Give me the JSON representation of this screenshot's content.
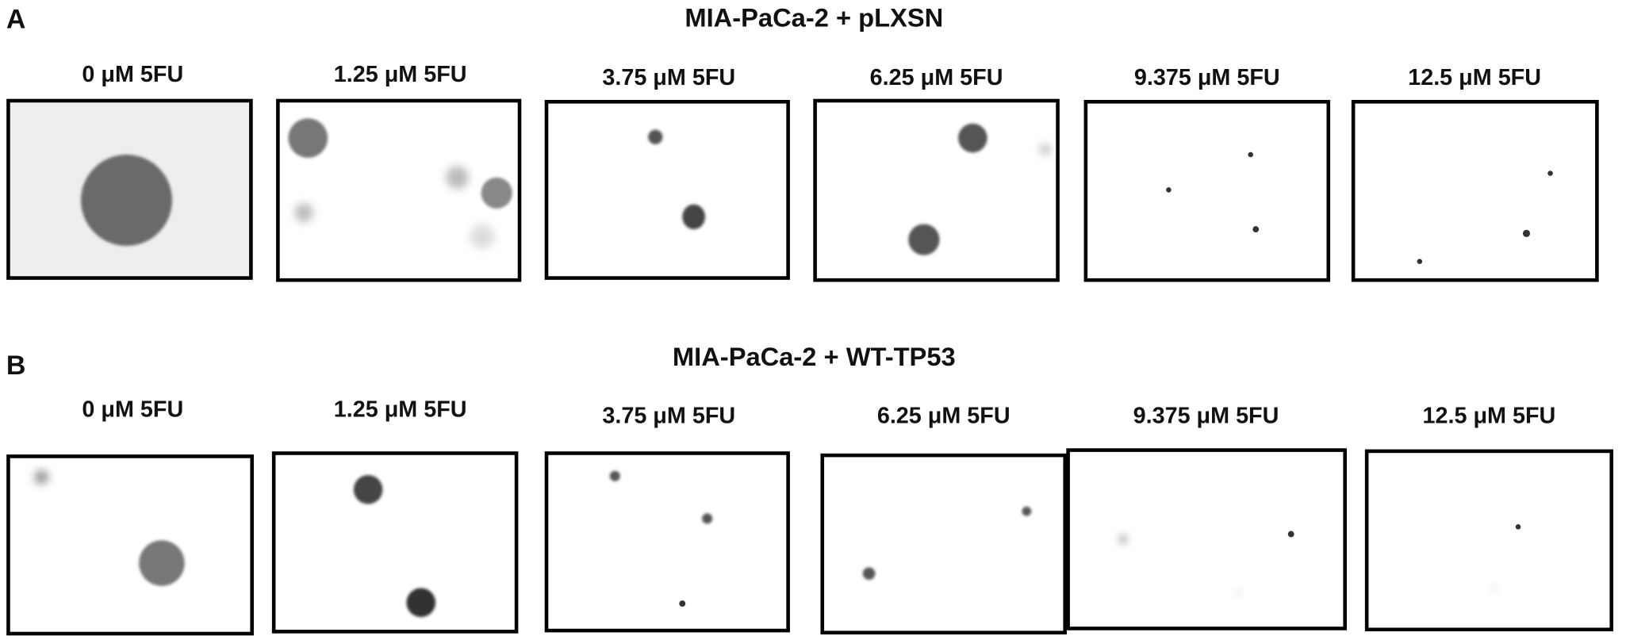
{
  "panels": [
    {
      "letter": "A",
      "title": "MIA-PaCa-2 + pLXSN",
      "labels": [
        "0 μM 5FU",
        "1.25 μM 5FU",
        "3.75 μM 5FU",
        "6.25 μM 5FU",
        "9.375 μM 5FU",
        "12.5 μM 5FU"
      ]
    },
    {
      "letter": "B",
      "title": "MIA-PaCa-2 + WT-TP53",
      "labels": [
        "0 μM 5FU",
        "1.25 μM 5FU",
        "3.75 μM 5FU",
        "6.25 μM 5FU",
        "9.375 μM 5FU",
        "12.5 μM 5FU"
      ]
    }
  ]
}
